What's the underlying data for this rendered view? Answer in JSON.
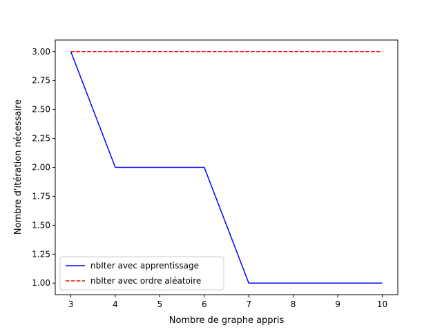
{
  "chart_data": {
    "type": "line",
    "title": "",
    "xlabel": "Nombre de graphe appris",
    "ylabel": "Nombre d'itération nécessaire",
    "xlim": [
      2.65,
      10.35
    ],
    "ylim": [
      0.9,
      3.1
    ],
    "x_ticks": [
      3,
      4,
      5,
      6,
      7,
      8,
      9,
      10
    ],
    "x_tick_labels": [
      "3",
      "4",
      "5",
      "6",
      "7",
      "8",
      "9",
      "10"
    ],
    "y_ticks": [
      1.0,
      1.25,
      1.5,
      1.75,
      2.0,
      2.25,
      2.5,
      2.75,
      3.0
    ],
    "y_tick_labels": [
      "1.00",
      "1.25",
      "1.50",
      "1.75",
      "2.00",
      "2.25",
      "2.50",
      "2.75",
      "3.00"
    ],
    "x": [
      3,
      4,
      5,
      6,
      7,
      8,
      9,
      10
    ],
    "series": [
      {
        "name": "nbIter avec apprentissage",
        "values": [
          3,
          2,
          2,
          2,
          1,
          1,
          1,
          1
        ],
        "color": "#0000ff",
        "style": "solid"
      },
      {
        "name": "nbIter avec ordre aléatoire",
        "values": [
          3,
          3,
          3,
          3,
          3,
          3,
          3,
          3
        ],
        "color": "#ff0000",
        "style": "dashed"
      }
    ],
    "grid": false,
    "legend_position": "lower-left"
  }
}
